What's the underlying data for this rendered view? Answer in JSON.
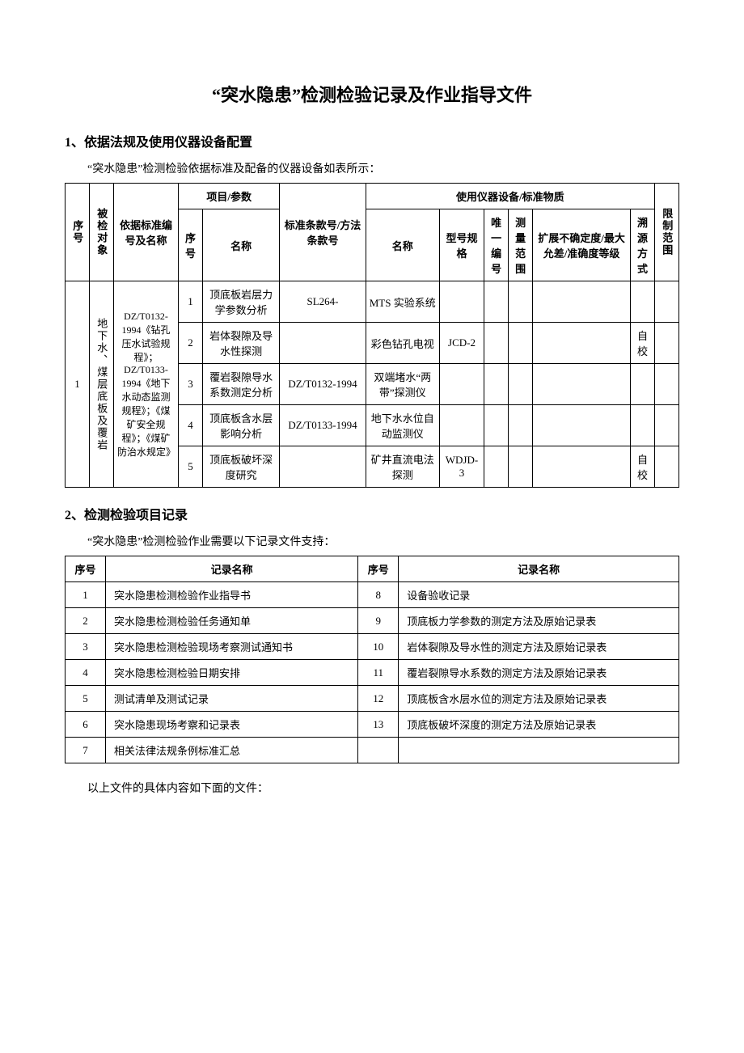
{
  "title": "“突水隐患”检测检验记录及作业指导文件",
  "section1": {
    "heading": "1、依据法规及使用仪器设备配置",
    "intro": "“突水隐患”检测检验依据标准及配备的仪器设备如表所示：",
    "headers": {
      "seq": "序号",
      "object": "被检对象",
      "standard": "依据标准编号及名称",
      "proj_param": "项目/参数",
      "proj_seq": "序号",
      "proj_name": "名称",
      "clause": "标准条款号/方法条款号",
      "equipment": "使用仪器设备/标准物质",
      "eq_name": "名称",
      "eq_model": "型号规格",
      "eq_id": "唯一编号",
      "eq_range": "测量范围",
      "eq_uncert": "扩展不确定度/最大允差/准确度等级",
      "eq_trace": "溯源方式",
      "limit": "限制范围"
    },
    "row_seq": "1",
    "row_object": "地下水、煤层底板及覆岩",
    "row_standard": "DZ/T0132-1994《钻孔压水试验规程》；DZ/T0133-1994《地下水动态监测规程》；《煤矿安全规程》；《煤矿防治水规定》",
    "items": [
      {
        "seq": "1",
        "name": "顶底板岩层力学参数分析",
        "clause": "SL264-",
        "eq_name": "MTS 实验系统",
        "model": "",
        "trace": ""
      },
      {
        "seq": "2",
        "name": "岩体裂隙及导水性探测",
        "clause": "",
        "eq_name": "彩色钻孔电视",
        "model": "JCD-2",
        "trace": "自校"
      },
      {
        "seq": "3",
        "name": "覆岩裂隙导水系数测定分析",
        "clause": "DZ/T0132-1994",
        "eq_name": "双端堵水“两带”探测仪",
        "model": "",
        "trace": ""
      },
      {
        "seq": "4",
        "name": "顶底板含水层影响分析",
        "clause": "DZ/T0133-1994",
        "eq_name": "地下水水位自动监测仪",
        "model": "",
        "trace": ""
      },
      {
        "seq": "5",
        "name": "顶底板破坏深度研究",
        "clause": "",
        "eq_name": "矿井直流电法探测",
        "model": "WDJD-3",
        "trace": "自校"
      }
    ]
  },
  "section2": {
    "heading": "2、检测检验项目记录",
    "intro": "“突水隐患”检测检验作业需要以下记录文件支持：",
    "headers": {
      "seq": "序号",
      "name": "记录名称"
    },
    "rows_left": [
      {
        "seq": "1",
        "name": "突水隐患检测检验作业指导书"
      },
      {
        "seq": "2",
        "name": "突水隐患检测检验任务通知单"
      },
      {
        "seq": "3",
        "name": "突水隐患检测检验现场考察测试通知书"
      },
      {
        "seq": "4",
        "name": "突水隐患检测检验日期安排"
      },
      {
        "seq": "5",
        "name": "测试清单及测试记录"
      },
      {
        "seq": "6",
        "name": "突水隐患现场考察和记录表"
      },
      {
        "seq": "7",
        "name": "相关法律法规条例标准汇总"
      }
    ],
    "rows_right": [
      {
        "seq": "8",
        "name": "设备验收记录"
      },
      {
        "seq": "9",
        "name": "顶底板力学参数的测定方法及原始记录表"
      },
      {
        "seq": "10",
        "name": "岩体裂隙及导水性的测定方法及原始记录表"
      },
      {
        "seq": "11",
        "name": "覆岩裂隙导水系数的测定方法及原始记录表"
      },
      {
        "seq": "12",
        "name": "顶底板含水层水位的测定方法及原始记录表"
      },
      {
        "seq": "13",
        "name": "顶底板破坏深度的测定方法及原始记录表"
      },
      {
        "seq": "",
        "name": ""
      }
    ]
  },
  "footer": "以上文件的具体内容如下面的文件："
}
